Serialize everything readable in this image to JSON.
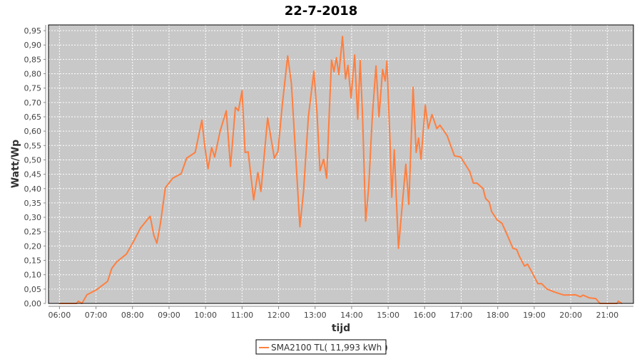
{
  "chart_data": {
    "type": "line",
    "title": "22-7-2018",
    "xlabel": "tijd",
    "ylabel": "Watt/Wp",
    "xlim": [
      "05:42",
      "21:43"
    ],
    "ylim": [
      0,
      0.97
    ],
    "x_ticks": [
      "06:00",
      "07:00",
      "08:00",
      "09:00",
      "10:00",
      "11:00",
      "12:00",
      "13:00",
      "14:00",
      "15:00",
      "16:00",
      "17:00",
      "18:00",
      "19:00",
      "20:00",
      "21:00"
    ],
    "y_ticks": [
      "0,00",
      "0,05",
      "0,10",
      "0,15",
      "0,20",
      "0,25",
      "0,30",
      "0,35",
      "0,40",
      "0,45",
      "0,50",
      "0,55",
      "0,60",
      "0,65",
      "0,70",
      "0,75",
      "0,80",
      "0,85",
      "0,90",
      "0,95"
    ],
    "grid": true,
    "legend_position": "bottom",
    "colors": {
      "series": "#ff7f3f",
      "plot_background": "#c8c8c8",
      "grid": "#ffffff"
    },
    "series": [
      {
        "name": "SMA2100 TL( 11,993 kWh )",
        "x": [
          "06:00",
          "06:28",
          "06:31",
          "06:37",
          "06:45",
          "07:01",
          "07:19",
          "07:26",
          "07:34",
          "07:50",
          "08:02",
          "08:13",
          "08:29",
          "08:35",
          "08:40",
          "08:46",
          "08:54",
          "09:06",
          "09:20",
          "09:29",
          "09:43",
          "09:54",
          "09:59",
          "10:04",
          "10:10",
          "10:15",
          "10:24",
          "10:34",
          "10:41",
          "10:49",
          "10:54",
          "11:00",
          "11:05",
          "11:10",
          "11:19",
          "11:26",
          "11:31",
          "11:42",
          "11:53",
          "11:59",
          "12:06",
          "12:15",
          "12:21",
          "12:35",
          "12:41",
          "12:49",
          "12:58",
          "13:03",
          "13:08",
          "13:14",
          "13:19",
          "13:24",
          "13:27",
          "13:31",
          "13:35",
          "13:39",
          "13:45",
          "13:50",
          "13:54",
          "13:59",
          "14:05",
          "14:10",
          "14:14",
          "14:18",
          "14:23",
          "14:28",
          "14:34",
          "14:40",
          "14:45",
          "14:51",
          "14:55",
          "14:58",
          "15:03",
          "15:06",
          "15:10",
          "15:17",
          "15:29",
          "15:34",
          "15:41",
          "15:46",
          "15:50",
          "15:54",
          "16:01",
          "16:06",
          "16:12",
          "16:20",
          "16:25",
          "16:37",
          "16:49",
          "16:59",
          "17:14",
          "17:20",
          "17:26",
          "17:36",
          "17:40",
          "17:46",
          "17:50",
          "17:59",
          "18:07",
          "18:15",
          "18:25",
          "18:31",
          "18:36",
          "18:44",
          "18:49",
          "18:56",
          "19:06",
          "19:12",
          "19:21",
          "19:33",
          "19:49",
          "20:08",
          "20:16",
          "20:20",
          "20:31",
          "20:41",
          "20:48",
          "21:16",
          "21:18",
          "21:24"
        ],
        "values": [
          0,
          0,
          0.008,
          0,
          0.03,
          0.048,
          0.077,
          0.122,
          0.145,
          0.172,
          0.217,
          0.262,
          0.304,
          0.238,
          0.21,
          0.28,
          0.403,
          0.436,
          0.452,
          0.506,
          0.526,
          0.638,
          0.543,
          0.469,
          0.543,
          0.51,
          0.6,
          0.671,
          0.477,
          0.683,
          0.671,
          0.741,
          0.526,
          0.528,
          0.361,
          0.456,
          0.39,
          0.646,
          0.506,
          0.53,
          0.691,
          0.862,
          0.766,
          0.267,
          0.39,
          0.65,
          0.809,
          0.667,
          0.462,
          0.502,
          0.436,
          0.7,
          0.848,
          0.807,
          0.856,
          0.797,
          0.93,
          0.782,
          0.829,
          0.716,
          0.865,
          0.642,
          0.846,
          0.65,
          0.287,
          0.403,
          0.65,
          0.827,
          0.65,
          0.815,
          0.775,
          0.844,
          0.568,
          0.37,
          0.535,
          0.192,
          0.485,
          0.345,
          0.753,
          0.526,
          0.576,
          0.502,
          0.691,
          0.609,
          0.658,
          0.609,
          0.621,
          0.584,
          0.514,
          0.51,
          0.46,
          0.419,
          0.419,
          0.4,
          0.366,
          0.353,
          0.32,
          0.291,
          0.279,
          0.242,
          0.192,
          0.188,
          0.163,
          0.13,
          0.137,
          0.11,
          0.069,
          0.069,
          0.05,
          0.04,
          0.029,
          0.03,
          0.023,
          0.029,
          0.019,
          0.017,
          0,
          0,
          0.008,
          0
        ]
      }
    ]
  }
}
